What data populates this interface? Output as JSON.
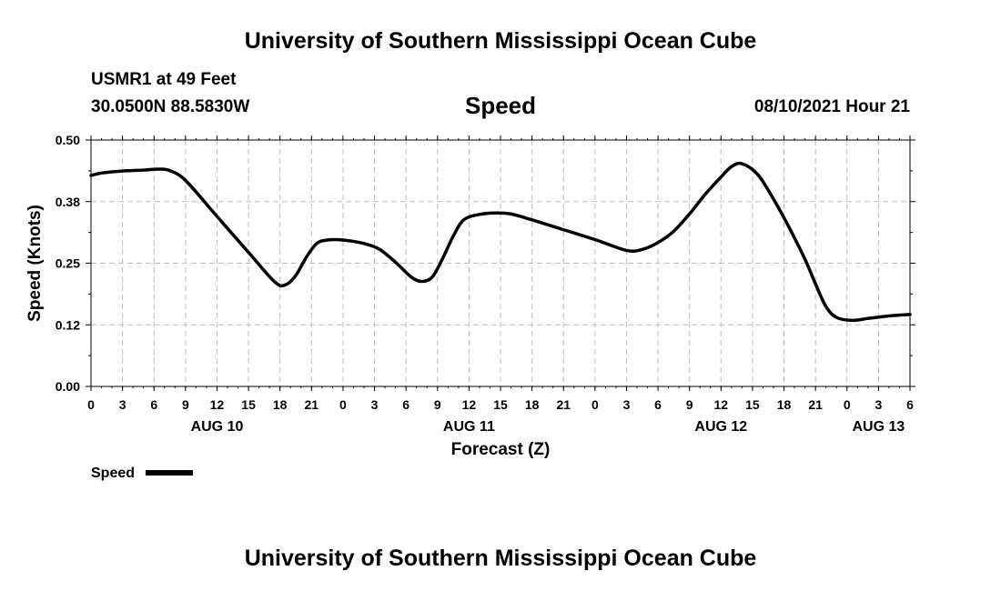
{
  "header": {
    "title": "University of Southern Mississippi Ocean Cube",
    "station": "USMR1 at 49 Feet",
    "coordinates": "30.0500N  88.5830W",
    "variable": "Speed",
    "timestamp": "08/10/2021 Hour 21"
  },
  "footer": {
    "title": "University of Southern Mississippi Ocean Cube"
  },
  "chart_data": {
    "type": "line",
    "xlabel": "Forecast (Z)",
    "ylabel": "Speed (Knots)",
    "xlim": [
      0,
      78
    ],
    "ylim": [
      0,
      0.5
    ],
    "y_ticks": [
      "0.00",
      "0.12",
      "0.25",
      "0.38",
      "0.50"
    ],
    "x_tick_labels": [
      "0",
      "3",
      "6",
      "9",
      "12",
      "15",
      "18",
      "21",
      "0",
      "3",
      "6",
      "9",
      "12",
      "15",
      "18",
      "21",
      "0",
      "3",
      "6",
      "9",
      "12",
      "15",
      "18",
      "21",
      "0",
      "3",
      "6"
    ],
    "date_labels": [
      {
        "label": "AUG 10",
        "x": 12
      },
      {
        "label": "AUG 11",
        "x": 36
      },
      {
        "label": "AUG 12",
        "x": 60
      },
      {
        "label": "AUG 13",
        "x": 75
      }
    ],
    "legend": {
      "label": "Speed",
      "placement": "bottom-left"
    },
    "grid": true,
    "series": [
      {
        "name": "Speed",
        "color": "#000000",
        "x": [
          0,
          1,
          3,
          5,
          6.5,
          7.5,
          9,
          12,
          15,
          17.5,
          18.5,
          19.5,
          20.5,
          21.5,
          22.5,
          24,
          26,
          27.5,
          29,
          30.5,
          31.5,
          32.5,
          33.5,
          34.5,
          35.5,
          37,
          38.5,
          40,
          42,
          45,
          48,
          51,
          52.5,
          54,
          55.5,
          57,
          58.5,
          60,
          61,
          62,
          63.5,
          65,
          66.5,
          68,
          69,
          70,
          71,
          72.5,
          74,
          76,
          78
        ],
        "y": [
          0.428,
          0.433,
          0.437,
          0.439,
          0.441,
          0.438,
          0.418,
          0.345,
          0.272,
          0.212,
          0.206,
          0.225,
          0.262,
          0.29,
          0.297,
          0.297,
          0.29,
          0.278,
          0.252,
          0.222,
          0.213,
          0.222,
          0.26,
          0.305,
          0.338,
          0.349,
          0.352,
          0.35,
          0.338,
          0.318,
          0.298,
          0.276,
          0.278,
          0.292,
          0.315,
          0.35,
          0.39,
          0.425,
          0.446,
          0.452,
          0.43,
          0.38,
          0.322,
          0.258,
          0.208,
          0.162,
          0.14,
          0.134,
          0.138,
          0.143,
          0.146
        ]
      }
    ]
  }
}
